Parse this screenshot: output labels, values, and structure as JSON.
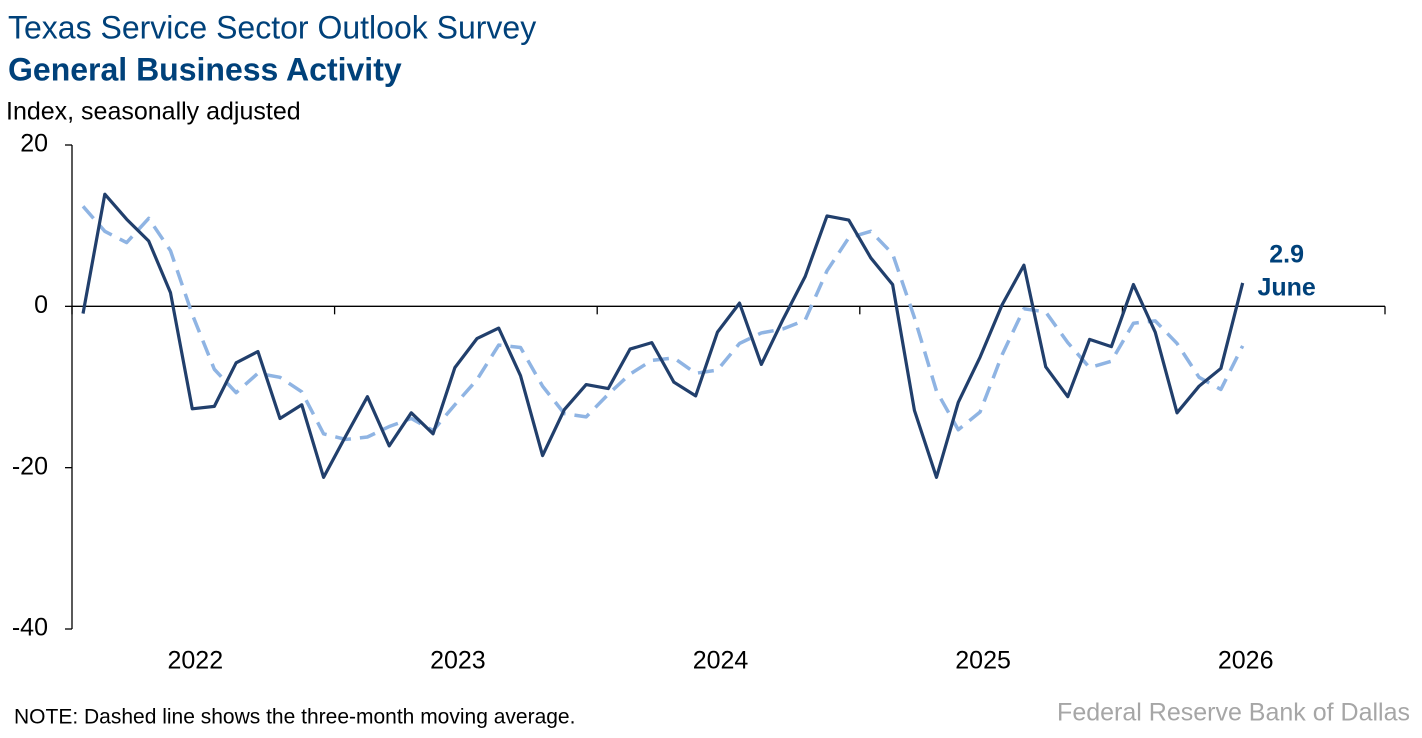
{
  "chart_data": {
    "type": "line",
    "title": "Texas Service Sector Outlook Survey",
    "subtitle": "General Business Activity",
    "y_label": "Index, seasonally adjusted",
    "note": "NOTE: Dashed line shows the three-month moving average.",
    "source": "Federal Reserve Bank of Dallas",
    "annotation": "June",
    "xlim": [
      2022,
      2027
    ],
    "xticks": [
      2022,
      2023,
      2024,
      2025,
      2026
    ],
    "ylim": [
      -40,
      20
    ],
    "yticks": [
      -40,
      -20,
      0,
      20
    ],
    "x": [
      2022.042,
      2022.125,
      2022.208,
      2022.292,
      2022.375,
      2022.458,
      2022.542,
      2022.625,
      2022.708,
      2022.792,
      2022.875,
      2022.958,
      2023.042,
      2023.125,
      2023.208,
      2023.292,
      2023.375,
      2023.458,
      2023.542,
      2023.625,
      2023.708,
      2023.792,
      2023.875,
      2023.958,
      2024.042,
      2024.125,
      2024.208,
      2024.292,
      2024.375,
      2024.458,
      2024.542,
      2024.625,
      2024.708,
      2024.792,
      2024.875,
      2024.958,
      2025.042,
      2025.125,
      2025.208,
      2025.292,
      2025.375,
      2025.458,
      2025.542,
      2025.625,
      2025.708,
      2025.792,
      2025.875,
      2025.958,
      2026.042,
      2026.125,
      2026.208,
      2026.292,
      2026.375,
      2026.458
    ],
    "series": [
      {
        "color": "#213f6c",
        "style": "solid",
        "values": [
          -0.9,
          13.9,
          10.8,
          8.1,
          1.7,
          -12.7,
          -12.4,
          -7.0,
          -5.6,
          -13.9,
          -12.2,
          -21.2,
          -16.1,
          -11.2,
          -17.3,
          -13.2,
          -15.8,
          -7.6,
          -4.0,
          -2.7,
          -8.6,
          -18.5,
          -12.8,
          -9.7,
          -10.2,
          -5.3,
          -4.5,
          -9.4,
          -11.1,
          -3.2,
          0.4,
          -7.2,
          -1.6,
          3.7,
          11.2,
          10.7,
          6.0,
          2.7,
          -12.9,
          -21.2,
          -11.9,
          -6.3,
          0.2,
          5.1,
          -7.5,
          -11.2,
          -4.1,
          -5.0,
          2.7,
          -3.2,
          -13.2,
          -9.9,
          -7.7,
          2.9
        ]
      },
      {
        "color": "#8fb4e3",
        "style": "dashed",
        "values": [
          12.4,
          9.3,
          7.9,
          10.9,
          6.9,
          -1.0,
          -7.8,
          -10.7,
          -8.3,
          -8.8,
          -10.6,
          -15.8,
          -16.5,
          -16.2,
          -14.9,
          -13.9,
          -15.4,
          -12.2,
          -9.1,
          -4.8,
          -5.1,
          -9.9,
          -13.3,
          -13.7,
          -10.9,
          -8.4,
          -6.7,
          -6.4,
          -8.3,
          -7.9,
          -4.6,
          -3.3,
          -2.8,
          -1.7,
          4.4,
          8.5,
          9.3,
          6.5,
          -1.4,
          -10.5,
          -15.3,
          -13.1,
          -6.0,
          -0.3,
          -0.7,
          -4.5,
          -7.6,
          -6.8,
          -2.1,
          -1.8,
          -4.6,
          -8.8,
          -10.3,
          -4.9
        ]
      }
    ]
  }
}
